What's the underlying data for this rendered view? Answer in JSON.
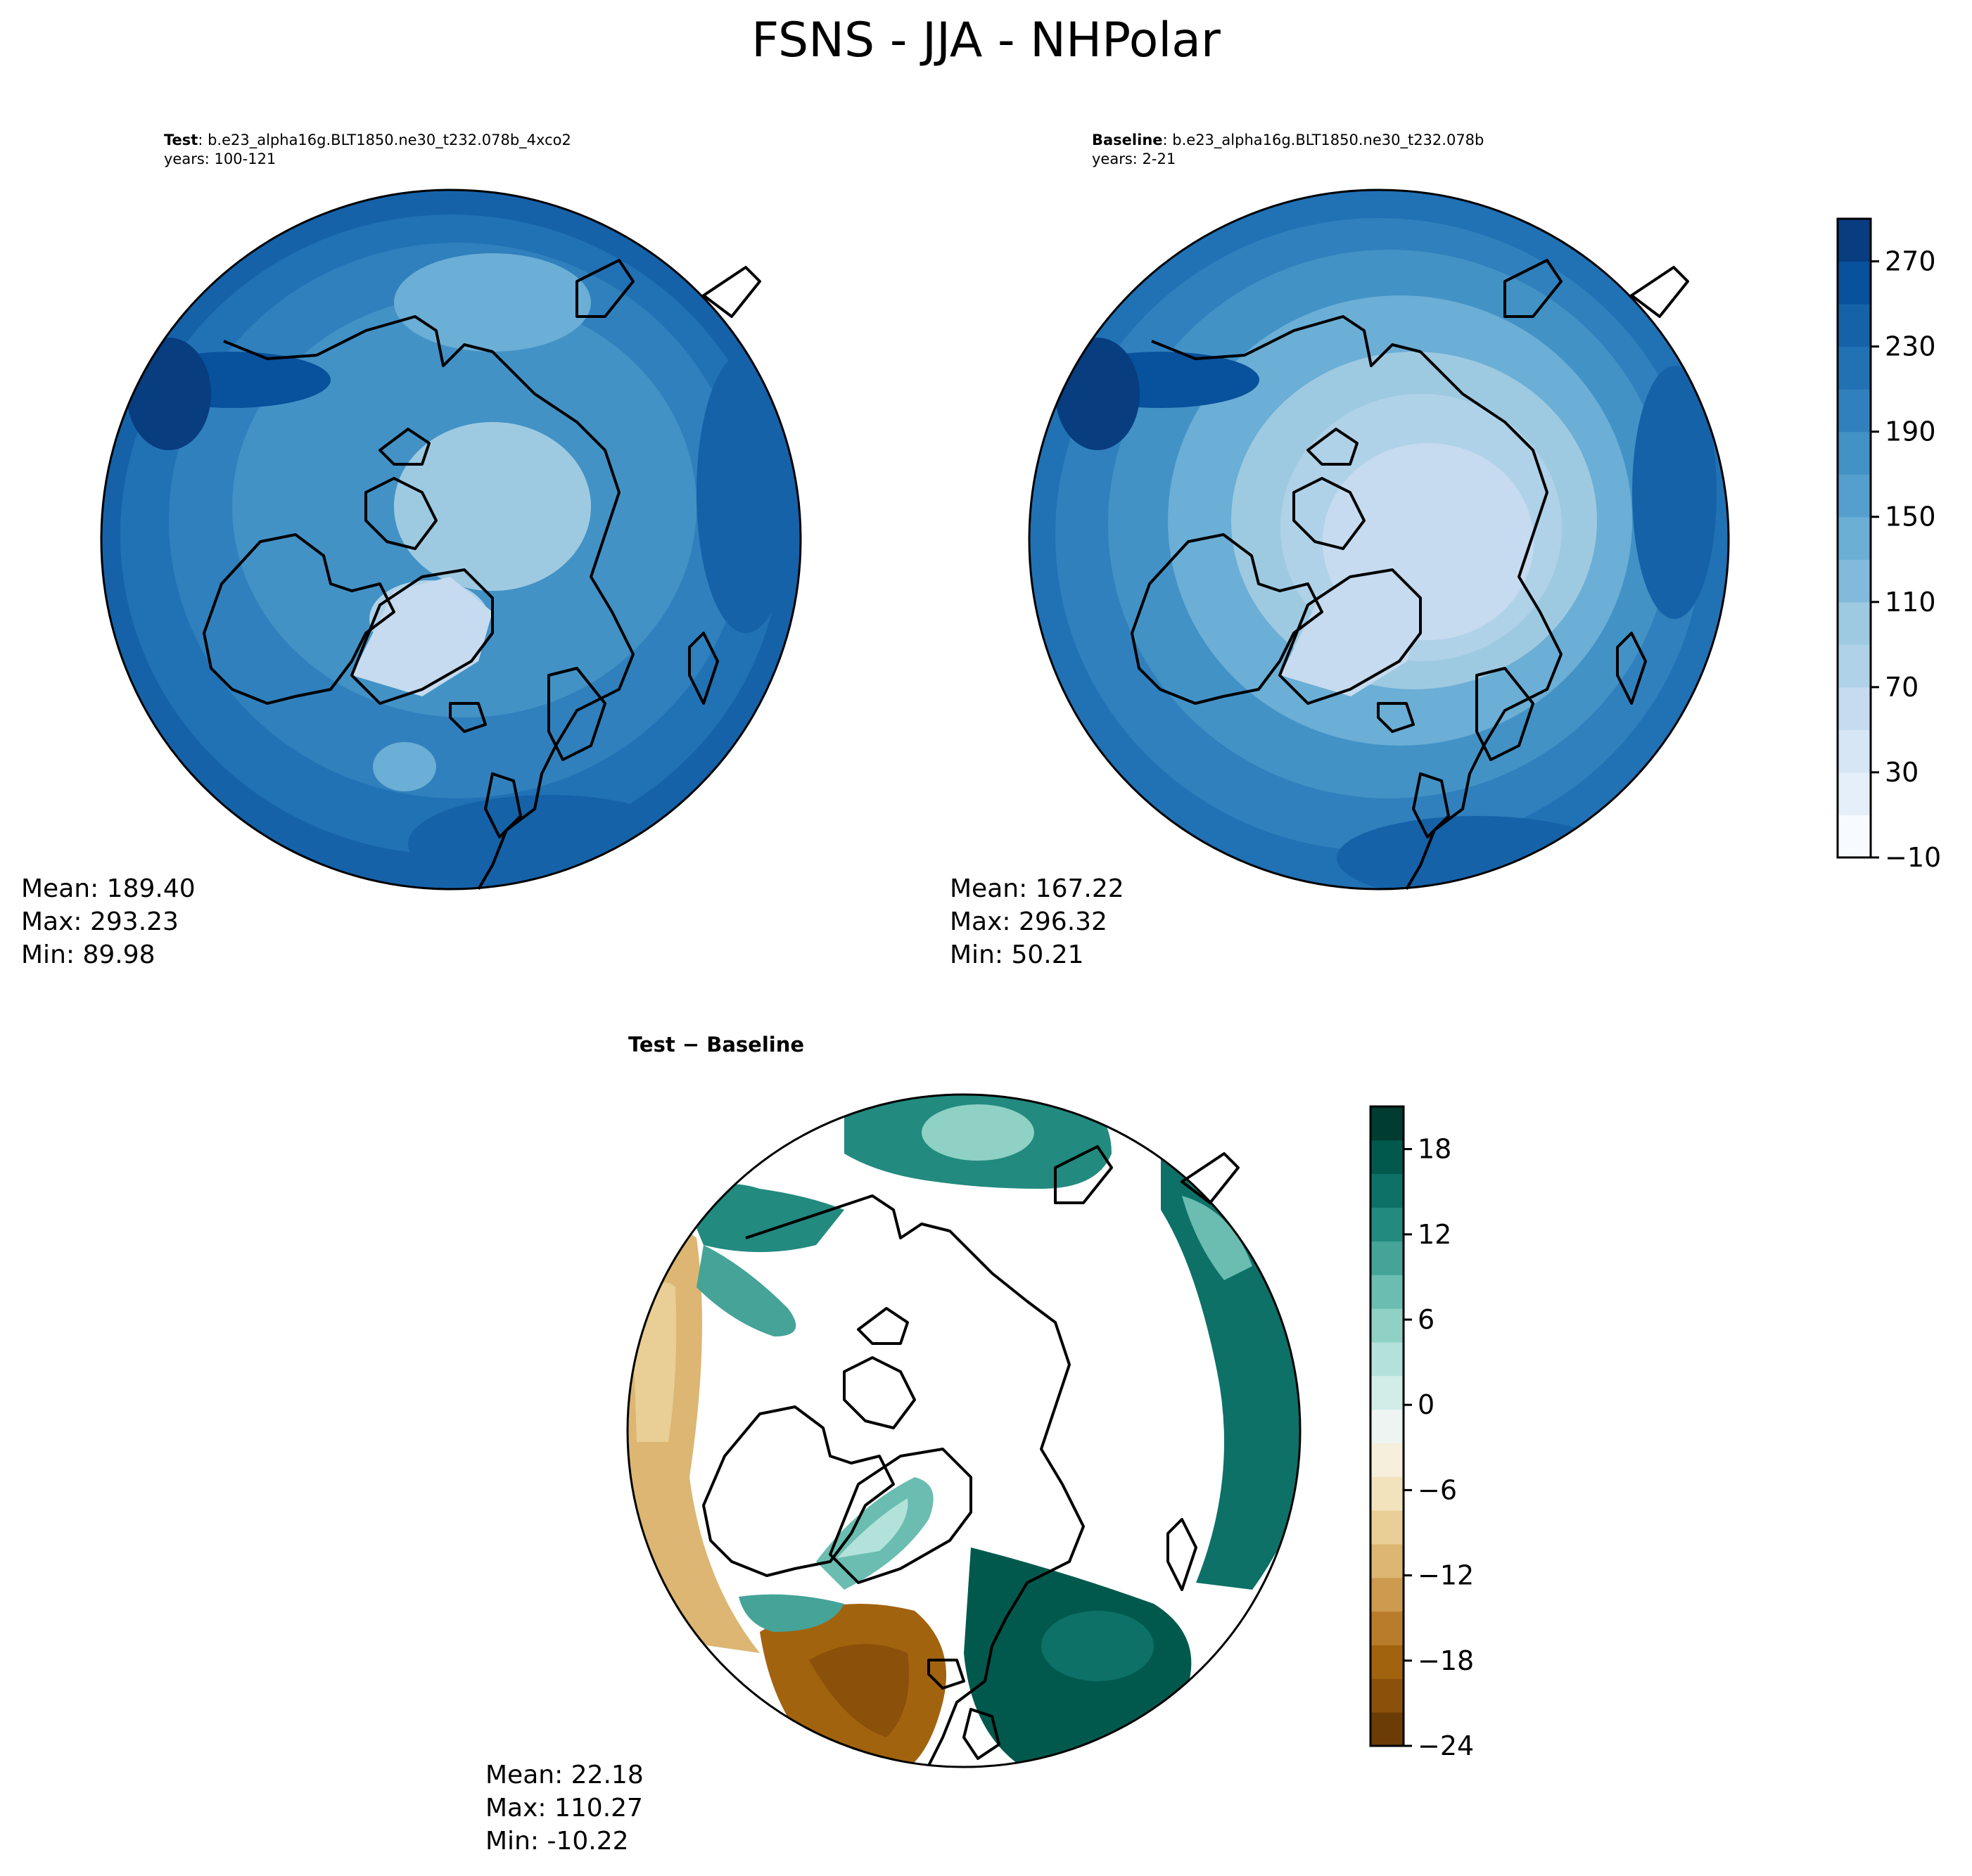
{
  "figure": {
    "title": "FSNS - JJA - NHPolar"
  },
  "panels": [
    {
      "id": "test",
      "label": "Test",
      "case": ": b.e23_alpha16g.BLT1850.ne30_t232.078b_4xco2",
      "years": "years: 100-121",
      "stats": {
        "mean": "Mean: 189.40",
        "max": "Max: 293.23",
        "min": "Min: 89.98"
      }
    },
    {
      "id": "baseline",
      "label": "Baseline",
      "case": ": b.e23_alpha16g.BLT1850.ne30_t232.078b",
      "years": "years: 2-21",
      "stats": {
        "mean": "Mean: 167.22",
        "max": "Max: 296.32",
        "min": "Min: 50.21"
      }
    },
    {
      "id": "diff",
      "label": "Test − Baseline",
      "stats": {
        "mean": "Mean: 22.18",
        "max": "Max: 110.27",
        "min": "Min: -10.22"
      }
    }
  ],
  "chart_data": [
    {
      "type": "heatmap",
      "projection": "north-polar-stereographic",
      "panel": "test",
      "colorbar_ref": "absolute",
      "mean": 189.4,
      "max": 293.23,
      "min": 89.98
    },
    {
      "type": "heatmap",
      "projection": "north-polar-stereographic",
      "panel": "baseline",
      "colorbar_ref": "absolute",
      "mean": 167.22,
      "max": 296.32,
      "min": 50.21
    },
    {
      "type": "heatmap",
      "projection": "north-polar-stereographic",
      "panel": "diff",
      "colorbar_ref": "difference",
      "mean": 22.18,
      "max": 110.27,
      "min": -10.22
    }
  ],
  "colorbars": {
    "absolute": {
      "cmap": "Blues",
      "range": [
        -10,
        290
      ],
      "ticks": [
        "270",
        "230",
        "190",
        "150",
        "110",
        "70",
        "30",
        "−10"
      ],
      "colors": [
        "#f7fbff",
        "#e5eff9",
        "#d6e6f4",
        "#c6dbef",
        "#b0d2e8",
        "#9ecae1",
        "#82badb",
        "#6baed6",
        "#549fcd",
        "#4292c6",
        "#3080bd",
        "#2171b5",
        "#1562a9",
        "#08519c",
        "#083d7f"
      ]
    },
    "difference": {
      "cmap": "BrBG",
      "range": [
        -24,
        21
      ],
      "ticks": [
        "18",
        "12",
        "6",
        "0",
        "−6",
        "−12",
        "−18",
        "−24"
      ],
      "colors": [
        "#6b3c06",
        "#8b500a",
        "#a2630f",
        "#b97c2b",
        "#cd9b4f",
        "#dcb672",
        "#e9ce95",
        "#f3e3bc",
        "#f5efdb",
        "#edf4f2",
        "#d2ece8",
        "#b3e2da",
        "#8fd1c5",
        "#6abdb0",
        "#45a398",
        "#228a7f",
        "#0d7167",
        "#01594d",
        "#003c30"
      ]
    }
  }
}
